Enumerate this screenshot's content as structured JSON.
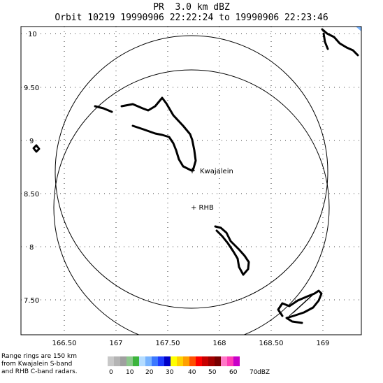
{
  "header": {
    "line1": "PR  3.0 km dBZ",
    "line2": "Orbit 10219 19990906 22:22:24 to 19990906 22:23:46"
  },
  "map": {
    "lon_ticks": [
      "166.50",
      "167",
      "167.50",
      "168",
      "168.50",
      "169"
    ],
    "lat_ticks": [
      "10",
      "9.50",
      "9",
      "8.50",
      "8",
      "7.50"
    ],
    "stations": {
      "kwajalein": "Kwajalein",
      "rhb": "+ RHB"
    }
  },
  "note": {
    "line1": "Range rings are 150 km",
    "line2": "from Kwajalein S-band",
    "line3": "and RHB C-band radars."
  },
  "colorbar": {
    "colors": [
      "#c8c8c8",
      "#b4b4b4",
      "#a0a0a0",
      "#8cc88c",
      "#3cb43c",
      "#b4dcff",
      "#78b4ff",
      "#3c78ff",
      "#1e3cff",
      "#0000c8",
      "#ffff00",
      "#ffd200",
      "#ffa000",
      "#ff5000",
      "#ff0000",
      "#c80000",
      "#a00000",
      "#780000",
      "#ff78c8",
      "#ff3cb4",
      "#c800c8"
    ],
    "labels": [
      "0",
      "10",
      "20",
      "30",
      "40",
      "50",
      "60",
      "70"
    ],
    "unit": "dBZ"
  }
}
